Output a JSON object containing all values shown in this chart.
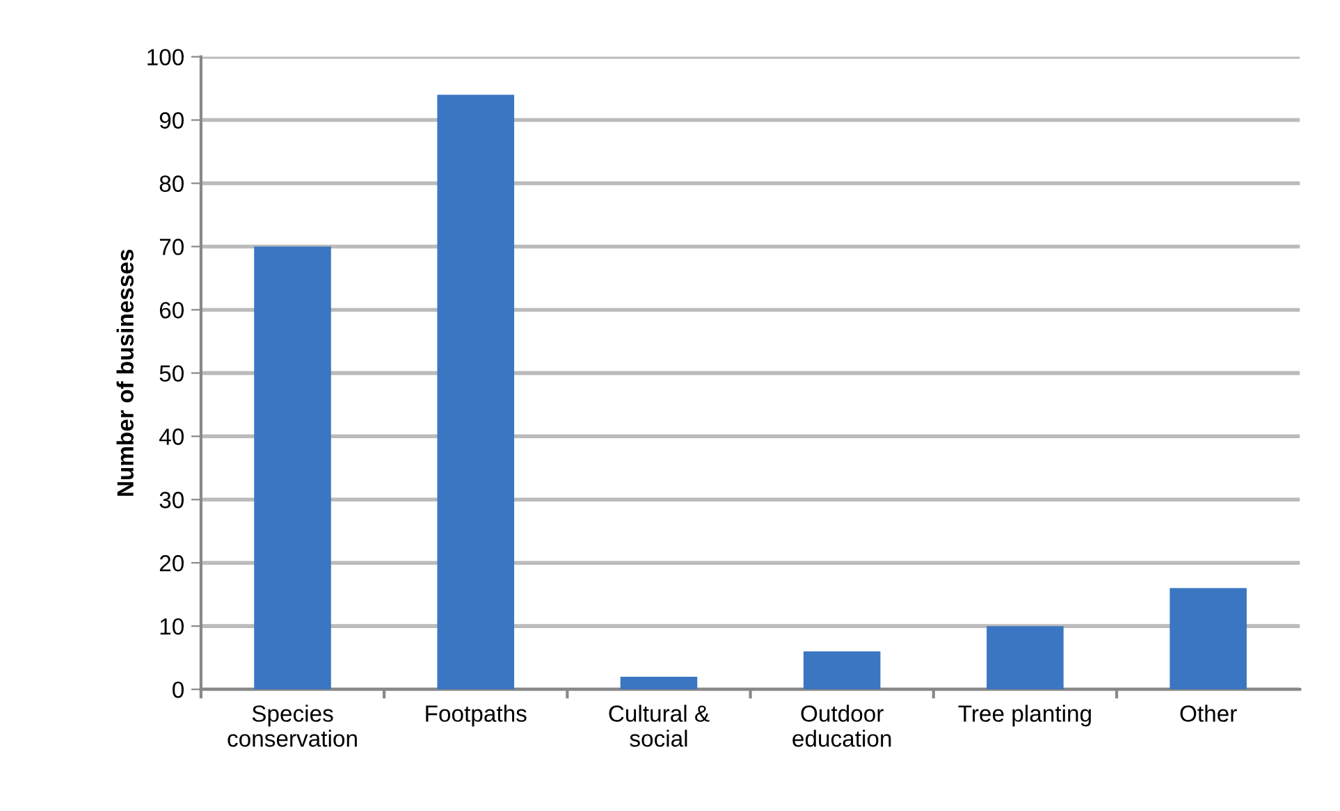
{
  "chart_data": {
    "type": "bar",
    "ylabel": "Number of businesses",
    "categories": [
      "Species\nconservation",
      "Footpaths",
      "Cultural &\nsocial",
      "Outdoor\neducation",
      "Tree planting",
      "Other"
    ],
    "values": [
      70,
      94,
      2,
      6,
      10,
      16
    ],
    "color": "#3a76c2",
    "ylim": [
      0,
      100
    ],
    "yticks": [
      0,
      10,
      20,
      30,
      40,
      50,
      60,
      70,
      80,
      90,
      100
    ],
    "grid": "y"
  }
}
